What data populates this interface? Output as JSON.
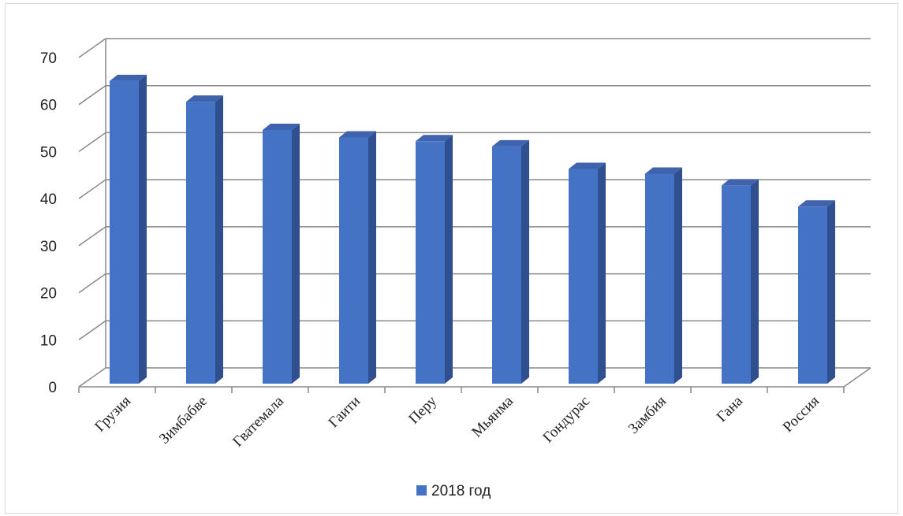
{
  "chart_data": {
    "type": "bar",
    "style": "3d-column",
    "categories": [
      "Грузия",
      "Зимбабве",
      "Гватемала",
      "Гаити",
      "Перу",
      "Мьянма",
      "Гондурас",
      "Замбия",
      "Гана",
      "Россия"
    ],
    "series": [
      {
        "name": "2018 год",
        "values": [
          65,
          60.6,
          54.6,
          53,
          52.2,
          51.1,
          46.3,
          45.3,
          42.8,
          38.3
        ],
        "color": "#4472c4"
      }
    ],
    "ylim": [
      0,
      70
    ],
    "yticks": [
      0,
      10,
      20,
      30,
      40,
      50,
      60,
      70
    ],
    "grid": true,
    "legend_position": "bottom",
    "colors": {
      "front": "#4472c4",
      "side": "#2f4f8f",
      "top": "#3f64ad",
      "grid": "#888888"
    }
  }
}
